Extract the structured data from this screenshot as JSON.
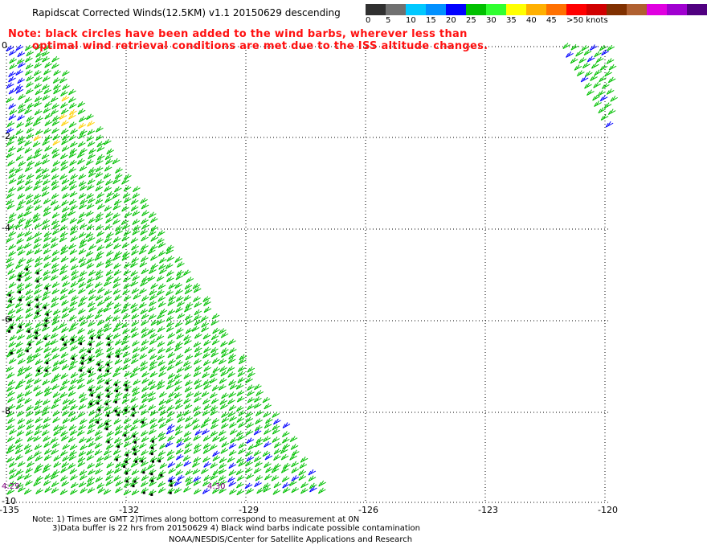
{
  "title": "Rapidscat Corrected Winds(12.5KM) v1.1 20150629 descending",
  "note_line1": "Note: black circles have been added to the wind barbs, wherever less than",
  "note_line2": "optimal wind retrieval conditions are met due to the ISS altitude changes.",
  "colorbar": {
    "colors": [
      "#303030",
      "#707070",
      "#00c8ff",
      "#0090ff",
      "#0000ff",
      "#00c000",
      "#30ff30",
      "#ffff00",
      "#ffb000",
      "#ff7000",
      "#ff0000",
      "#d00000",
      "#803000",
      "#b06030",
      "#e000e0",
      "#a000d0",
      "#500080"
    ],
    "labels": [
      "0",
      "5",
      "10",
      "15",
      "20",
      "25",
      "30",
      "35",
      "40",
      "45",
      ">50 knots"
    ]
  },
  "x_ticks": [
    "-135",
    "-132",
    "-129",
    "-126",
    "-123",
    "-120"
  ],
  "y_ticks": [
    "0",
    "-2",
    "-4",
    "-6",
    "-8",
    "-10"
  ],
  "time_labels": [
    "4:29",
    "4:30"
  ],
  "footer_line1": "Note: 1) Times are GMT 2)Times along bottom correspond to measurement at 0N",
  "footer_line2": "3)Data buffer is 22 hrs from 20150629 4) Black wind barbs indicate possible contamination",
  "footer_line3": "NOAA/NESDIS/Center for Satellite Applications and Research"
}
